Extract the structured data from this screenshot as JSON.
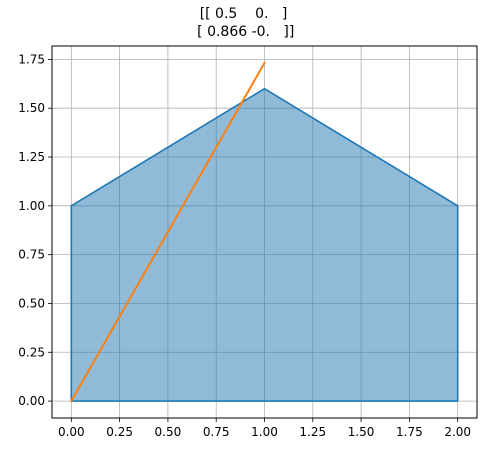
{
  "chart_data": {
    "type": "area",
    "title": [
      "[[ 0.5    0.   ]",
      " [ 0.866 -0.   ]]"
    ],
    "xlabel": "",
    "ylabel": "",
    "xlim": [
      -0.1,
      2.1
    ],
    "ylim": [
      -0.0866,
      1.8186
    ],
    "grid": true,
    "x_ticks": [
      0.0,
      0.25,
      0.5,
      0.75,
      1.0,
      1.25,
      1.5,
      1.75,
      2.0
    ],
    "x_tick_labels": [
      "0.00",
      "0.25",
      "0.50",
      "0.75",
      "1.00",
      "1.25",
      "1.50",
      "1.75",
      "2.00"
    ],
    "y_ticks": [
      0.0,
      0.25,
      0.5,
      0.75,
      1.0,
      1.25,
      1.5,
      1.75
    ],
    "y_tick_labels": [
      "0.00",
      "0.25",
      "0.50",
      "0.75",
      "1.00",
      "1.25",
      "1.50",
      "1.75"
    ],
    "series": [
      {
        "kind": "filled-polygon",
        "x": [
          0,
          0,
          1,
          2,
          2,
          0
        ],
        "y": [
          0,
          1,
          1.6,
          1,
          0,
          0
        ],
        "color": "#1f77b4",
        "fill_color": "#1f77b4",
        "fill_opacity": 0.5
      },
      {
        "kind": "line",
        "x": [
          0,
          1
        ],
        "y": [
          0,
          1.732
        ],
        "color": "#ff7f0e"
      }
    ]
  }
}
